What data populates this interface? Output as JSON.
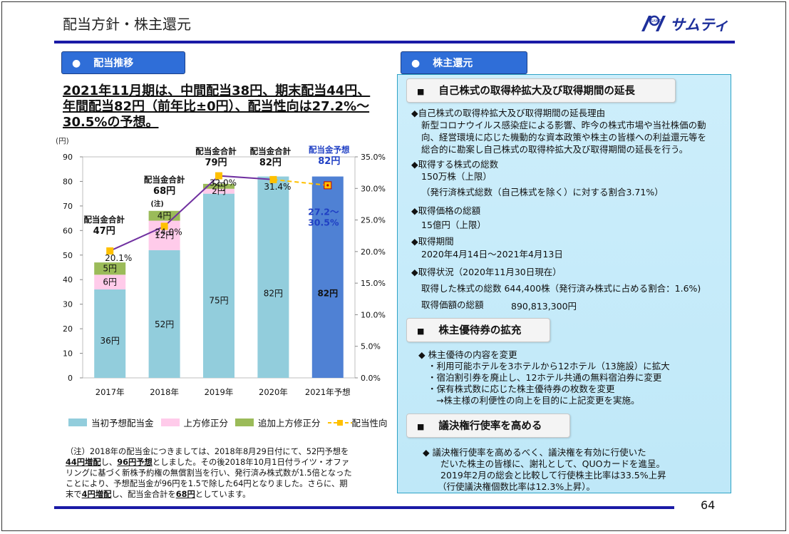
{
  "slide": {
    "title": "配当方針・株主還元",
    "logo_text": "サムティ",
    "logo_mark": "SAMTY",
    "page_number": "64"
  },
  "left": {
    "tab_label": "配当推移",
    "headline": [
      "2021年11月期は、中間配当38円、期末配当44円、",
      "年間配当82円（前年比±0円）、配当性向は27.2%～",
      "30.5%の予想。"
    ],
    "legend": [
      "当初予想配当金",
      "上方修正分",
      "追加上方修正分",
      "配当性向"
    ],
    "note": {
      "l1": "（注）2018年の配当金につきましては、2018年8月29日付にて、52円予想を",
      "l2a": "44円増配",
      "l2b": "し、",
      "l2c": "96円予想",
      "l2d": "としました。その後2018年10月1日付ライツ・オファ",
      "l3": "リングに基づく新株予約権の無償割当を行い、発行済み株式数が1.5倍となった",
      "l4": "ことにより、予想配当金が96円を1.5で除した64円となりました。さらに、期",
      "l5a": "末で",
      "l5b": "4円増配",
      "l5c": "し、配当金合計を",
      "l5d": "68円",
      "l5e": "としています。"
    }
  },
  "chart_data": {
    "type": "bar",
    "categories": [
      "2017年",
      "2018年",
      "2019年",
      "2020年",
      "2021年予想"
    ],
    "series": [
      {
        "name": "当初予想配当金",
        "values": [
          36,
          52,
          75,
          82,
          82
        ],
        "labels": [
          "36円",
          "52円",
          "75円",
          "82円",
          "82円"
        ],
        "color": "#92cddc"
      },
      {
        "name": "上方修正分",
        "values": [
          6,
          12,
          2,
          0,
          0
        ],
        "labels": [
          "6円",
          "12円",
          "2円",
          "",
          ""
        ],
        "color": "#ffcbea"
      },
      {
        "name": "追加上方修正分",
        "values": [
          5,
          4,
          2,
          0,
          0
        ],
        "labels": [
          "5円",
          "4円",
          "2円",
          "",
          ""
        ],
        "color": "#9bbb59"
      },
      {
        "name": "配当性向",
        "values": [
          20.1,
          24.0,
          32.0,
          31.4,
          30.5
        ],
        "labels": [
          "20.1%",
          "24.0%",
          "32.0%",
          "31.4%",
          ""
        ],
        "color": "#7030a0",
        "marker_color": "#ffc000"
      }
    ],
    "forecast_bar_color": "#4f81d4",
    "forecast_payout_range": [
      27.2,
      30.5
    ],
    "y_left": {
      "label": "(円)",
      "min": 0,
      "max": 90,
      "ticks": [
        "0",
        "10",
        "20",
        "30",
        "40",
        "50",
        "60",
        "70",
        "80",
        "90"
      ]
    },
    "y_right": {
      "min": 0,
      "max": 35,
      "ticks": [
        "0.0%",
        "5.0%",
        "10.0%",
        "15.0%",
        "20.0%",
        "25.0%",
        "30.0%",
        "35.0%"
      ]
    },
    "totals": [
      {
        "title": "配当金合計",
        "value": "47円"
      },
      {
        "title": "配当金合計",
        "value": "68円",
        "note": "(注)"
      },
      {
        "title": "配当金合計",
        "value": "79円"
      },
      {
        "title": "配当金合計",
        "value": "82円"
      },
      {
        "title": "配当金予想",
        "value": "82円"
      }
    ],
    "forecast_payout_label": [
      "27.2～",
      "30.5%"
    ]
  },
  "right": {
    "tab_label": "株主還元",
    "sec1": {
      "title": "自己株式の取得枠拡大及び取得期間の延長",
      "lines": [
        "◆自己株式の取得枠拡大及び取得期間の延長理由",
        "新型コロナウイルス感染症による影響、昨今の株式市場や当社株価の動",
        "向、経営環境に応じた機動的な資本政策や株主の皆様への利益還元等を",
        "総合的に勘案し自己株式の取得枠拡大及び取得期間の延長を行う。",
        "◆取得する株式の総数",
        "150万株（上限）",
        "（発行済株式総数（自己株式を除く）に対する割合3.71%）",
        "◆取得価格の総額",
        "15億円（上限）",
        "◆取得期間",
        "2020年4月14日～2021年4月13日",
        "◆取得状況（2020年11月30日現在）",
        "取得した株式の総数  644,400株（発行済み株式に占める割合：1.6%)",
        "取得価額の総額",
        "890,813,300円"
      ]
    },
    "sec2": {
      "title": "株主優待券の拡充",
      "lines": [
        "◆    株主優待の内容を変更",
        "・利用可能ホテルを3ホテルから12ホテル（13施設）に拡大",
        "・宿泊割引券を廃止し、12ホテル共通の無料宿泊券に変更",
        "・保有株式数に応じた株主優待券の枚数を変更",
        "→株主様の利便性の向上を目的に上記変更を実施。"
      ]
    },
    "sec3": {
      "title": "議決権行使率を高める",
      "lines": [
        "◆    議決権行使率を高めるべく、議決権を有効に行使いた",
        "だいた株主の皆様に、謝礼として、QUOカードを進呈。",
        "2019年2月の総会と比較して行使株主比率は33.5%上昇",
        "（行使議決権個数比率は12.3%上昇）。"
      ]
    }
  }
}
